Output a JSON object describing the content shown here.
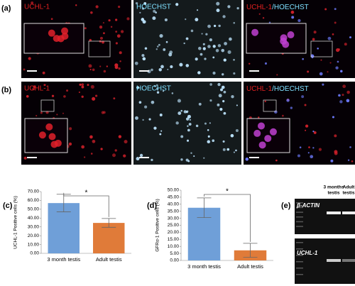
{
  "image_rows": [
    {
      "label": "(a)",
      "red_title": "UCHL-1",
      "blue_title": "HOECHST",
      "merge_red": "UCHL-1",
      "merge_blue": "/HOECHST"
    },
    {
      "label": "(b)",
      "red_title": "UCHL-1",
      "blue_title": "HOECHST",
      "merge_red": "UCHL-1",
      "merge_blue": "/HOECHST"
    }
  ],
  "chart_data": [
    {
      "type": "bar",
      "panel_label": "(c)",
      "ylabel": "UCHL-1 Positive cells (%)",
      "categories": [
        "3 month testis",
        "Adult testis"
      ],
      "values": [
        57,
        34.5
      ],
      "errors": [
        10,
        5
      ],
      "colors": [
        "#6f9fd8",
        "#e07b39"
      ],
      "annotation": "*",
      "ylim": [
        0,
        70
      ],
      "yticks": [
        {
          "value": 0,
          "label": "0.00"
        },
        {
          "value": 10,
          "label": "10.00"
        },
        {
          "value": 20,
          "label": "20.00"
        },
        {
          "value": 30,
          "label": "30.00"
        },
        {
          "value": 40,
          "label": "40.00"
        },
        {
          "value": 50,
          "label": "50.00"
        },
        {
          "value": 60,
          "label": "60.00"
        },
        {
          "value": 70,
          "label": "70.00"
        }
      ]
    },
    {
      "type": "bar",
      "panel_label": "(d)",
      "ylabel": "GFRα-1 Positive cells (%)",
      "categories": [
        "3 month testis",
        "Adult testis"
      ],
      "values": [
        37.5,
        7.2
      ],
      "errors": [
        7,
        5
      ],
      "colors": [
        "#6f9fd8",
        "#e07b39"
      ],
      "annotation": "*",
      "ylim": [
        0,
        50
      ],
      "yticks": [
        {
          "value": 0,
          "label": "0.00"
        },
        {
          "value": 5,
          "label": "5.00"
        },
        {
          "value": 10,
          "label": "10.00"
        },
        {
          "value": 15,
          "label": "15.00"
        },
        {
          "value": 20,
          "label": "20.00"
        },
        {
          "value": 25,
          "label": "25.00"
        },
        {
          "value": 30,
          "label": "30.00"
        },
        {
          "value": 35,
          "label": "35.00"
        },
        {
          "value": 40,
          "label": "40.00"
        },
        {
          "value": 45,
          "label": "45.00"
        },
        {
          "value": 50,
          "label": "50.00"
        }
      ]
    }
  ],
  "gel": {
    "label": "(e)",
    "lanes": [
      [
        "3 months",
        "testis"
      ],
      [
        "Adult",
        "testis"
      ]
    ],
    "genes": [
      "β-ACTIN",
      "UCHL-1"
    ]
  }
}
